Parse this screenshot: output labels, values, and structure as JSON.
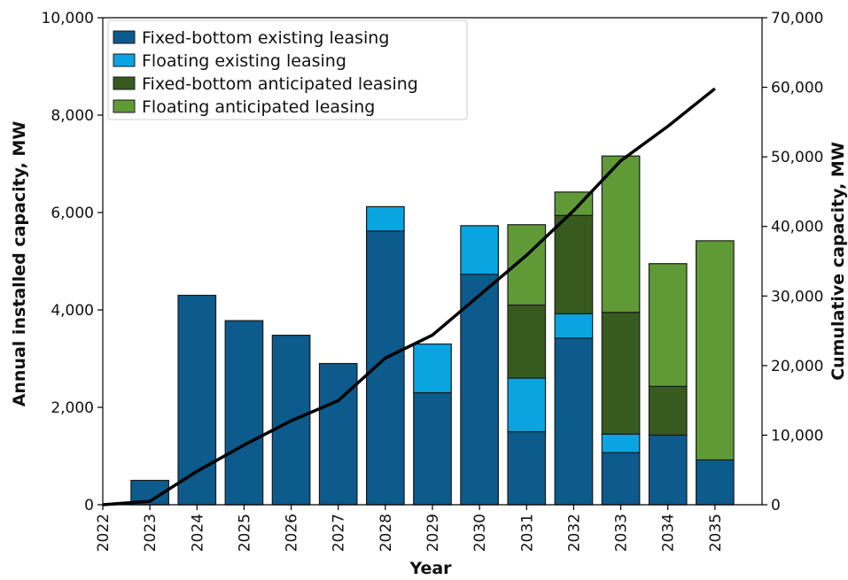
{
  "chart_data": {
    "type": "bar",
    "title": "",
    "xlabel": "Year",
    "ylabel": "Annual installed capacity, MW",
    "y2label": "Cumulative capacity, MW",
    "categories": [
      "2022",
      "2023",
      "2024",
      "2025",
      "2026",
      "2027",
      "2028",
      "2029",
      "2030",
      "2031",
      "2032",
      "2033",
      "2034",
      "2035"
    ],
    "ylim": [
      0,
      10000
    ],
    "y2lim": [
      0,
      70000
    ],
    "yticks": [
      "0",
      "2,000",
      "4,000",
      "6,000",
      "8,000",
      "10,000"
    ],
    "y2ticks": [
      "0",
      "10,000",
      "20,000",
      "30,000",
      "40,000",
      "50,000",
      "60,000",
      "70,000"
    ],
    "grid": false,
    "legend_position": "top-left",
    "series": [
      {
        "name": "Fixed-bottom existing leasing",
        "type": "bar",
        "color": "#0d5a8c",
        "values": [
          0,
          500,
          4300,
          3780,
          3480,
          2900,
          5620,
          2300,
          4730,
          1500,
          3420,
          1070,
          1430,
          920
        ]
      },
      {
        "name": "Floating existing leasing",
        "type": "bar",
        "color": "#0aa4e0",
        "values": [
          0,
          0,
          0,
          0,
          0,
          0,
          500,
          1000,
          1000,
          1100,
          500,
          380,
          0,
          0
        ]
      },
      {
        "name": "Fixed-bottom anticipated leasing",
        "type": "bar",
        "color": "#375b1f",
        "values": [
          0,
          0,
          0,
          0,
          0,
          0,
          0,
          0,
          0,
          1500,
          2020,
          2500,
          1000,
          0
        ]
      },
      {
        "name": "Floating anticipated leasing",
        "type": "bar",
        "color": "#5f9a37",
        "values": [
          0,
          0,
          0,
          0,
          0,
          0,
          0,
          0,
          0,
          1650,
          480,
          3210,
          2520,
          4500
        ]
      },
      {
        "name": "Cumulative capacity",
        "type": "line",
        "axis": "right",
        "color": "#000000",
        "values": [
          0,
          500,
          4800,
          8580,
          12060,
          14960,
          21080,
          24380,
          30110,
          35860,
          42280,
          49440,
          54390,
          59810
        ]
      }
    ]
  }
}
